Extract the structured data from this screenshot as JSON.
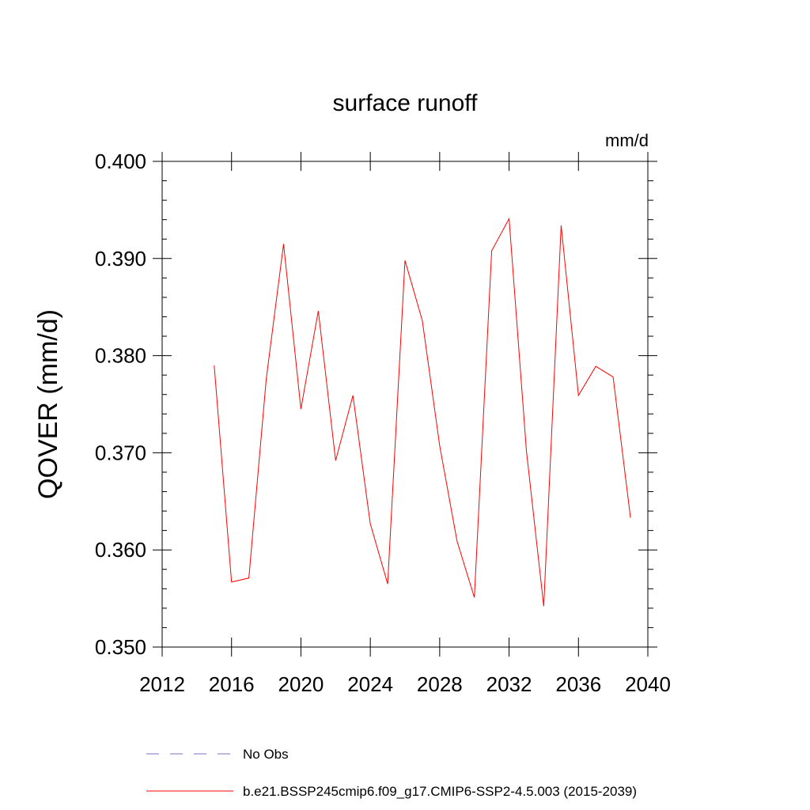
{
  "chart_data": {
    "type": "line",
    "title": "surface runoff",
    "units_label": "mm/d",
    "ylabel": "QOVER  (mm/d)",
    "xlabel": "",
    "xlim": [
      2012,
      2040
    ],
    "ylim": [
      0.35,
      0.4
    ],
    "x_ticks": [
      "2012",
      "2016",
      "2020",
      "2024",
      "2028",
      "2032",
      "2036",
      "2040"
    ],
    "y_ticks": [
      "0.350",
      "0.360",
      "0.370",
      "0.380",
      "0.390",
      "0.400"
    ],
    "grid": false,
    "legend_position": "bottom",
    "series": [
      {
        "name": "b.e21.BSSP245cmip6.f09_g17.CMIP6-SSP2-4.5.003 (2015-2039)",
        "color": "#ff0000",
        "style": "solid",
        "x": [
          2015,
          2016,
          2017,
          2018,
          2019,
          2020,
          2021,
          2022,
          2023,
          2024,
          2025,
          2026,
          2027,
          2028,
          2029,
          2030,
          2031,
          2032,
          2033,
          2034,
          2035,
          2036,
          2037,
          2038,
          2039
        ],
        "values": [
          0.379,
          0.3567,
          0.3571,
          0.3776,
          0.3915,
          0.3745,
          0.3846,
          0.3692,
          0.3759,
          0.3627,
          0.3565,
          0.3898,
          0.3836,
          0.3707,
          0.3609,
          0.3551,
          0.3908,
          0.3941,
          0.3702,
          0.3542,
          0.3934,
          0.3759,
          0.3789,
          0.3778,
          0.3633
        ]
      },
      {
        "name": "No Obs",
        "color": "#7070c0",
        "style": "dashed",
        "x": [],
        "values": []
      }
    ]
  }
}
